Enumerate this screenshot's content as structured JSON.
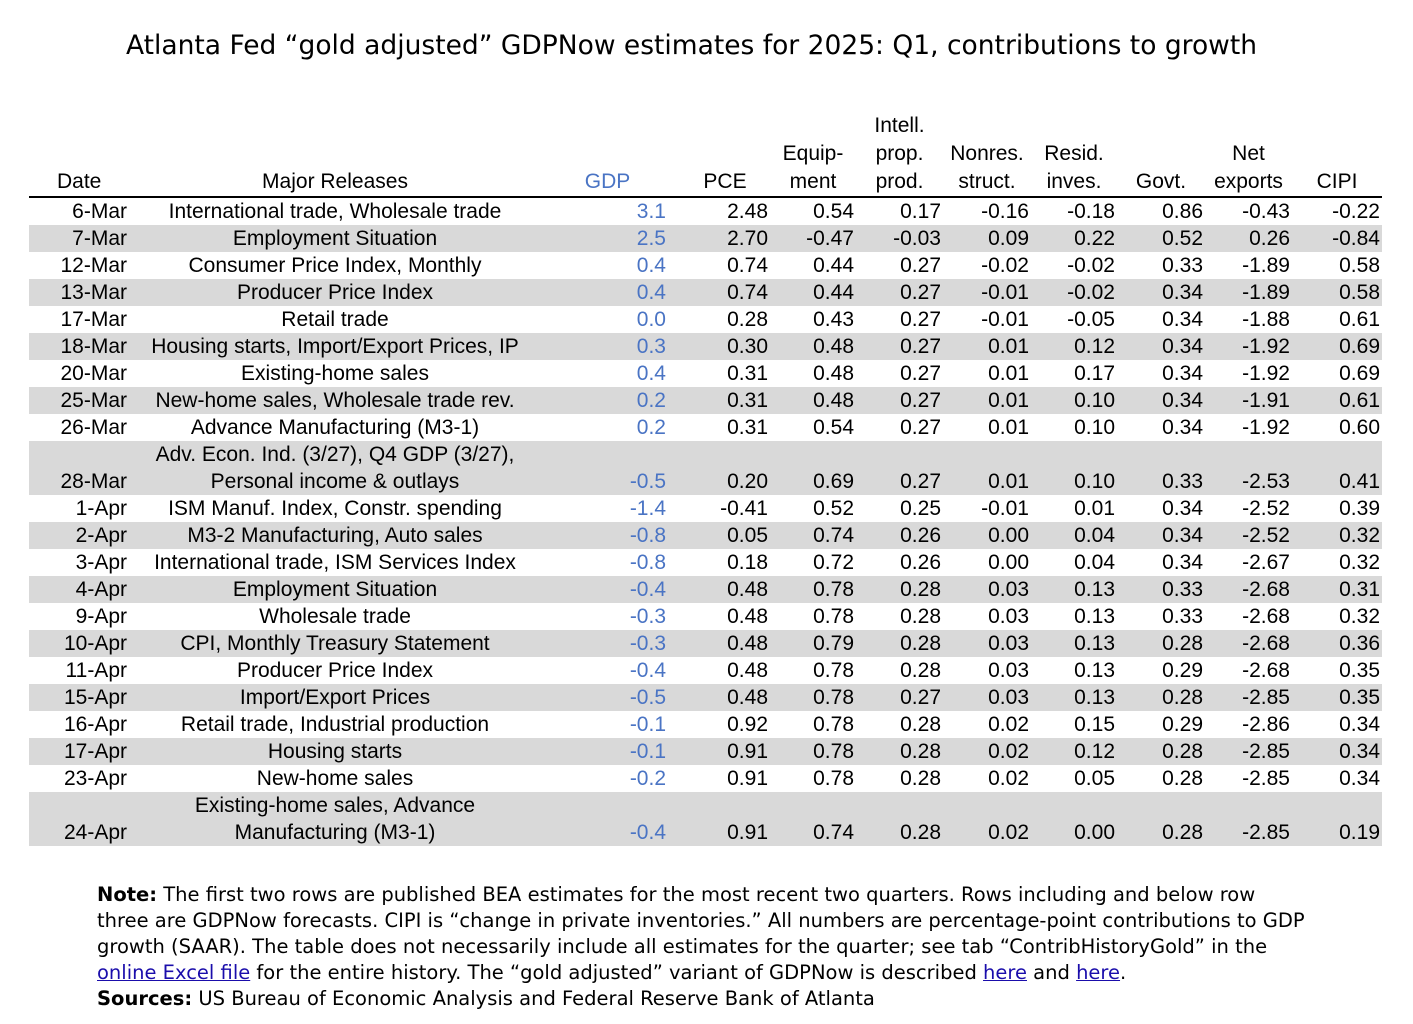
{
  "title": "Atlanta Fed “gold adjusted” GDPNow estimates for 2025: Q1, contributions to growth",
  "columns": {
    "date": "Date",
    "releases": "Major Releases",
    "gdp": "GDP",
    "pce": "PCE",
    "equip_1": "Equip-",
    "equip_2": "ment",
    "intell_1": "Intell.",
    "intell_2": "prop.",
    "intell_3": "prod.",
    "nonres_1": "Nonres.",
    "nonres_2": "struct.",
    "resid_1": "Resid.",
    "resid_2": "inves.",
    "govt": "Govt.",
    "net_1": "Net",
    "net_2": "exports",
    "cipi": "CIPI"
  },
  "rows": [
    {
      "date": "6-Mar",
      "release": "International trade, Wholesale trade",
      "gdp": "3.1",
      "pce": "2.48",
      "equip": "0.54",
      "ipp": "0.17",
      "nonres": "-0.16",
      "resid": "-0.18",
      "govt": "0.86",
      "netx": "-0.43",
      "cipi": "-0.22"
    },
    {
      "date": "7-Mar",
      "release": "Employment Situation",
      "gdp": "2.5",
      "pce": "2.70",
      "equip": "-0.47",
      "ipp": "-0.03",
      "nonres": "0.09",
      "resid": "0.22",
      "govt": "0.52",
      "netx": "0.26",
      "cipi": "-0.84"
    },
    {
      "date": "12-Mar",
      "release": "Consumer Price Index, Monthly",
      "gdp": "0.4",
      "pce": "0.74",
      "equip": "0.44",
      "ipp": "0.27",
      "nonres": "-0.02",
      "resid": "-0.02",
      "govt": "0.33",
      "netx": "-1.89",
      "cipi": "0.58"
    },
    {
      "date": "13-Mar",
      "release": "Producer Price Index",
      "gdp": "0.4",
      "pce": "0.74",
      "equip": "0.44",
      "ipp": "0.27",
      "nonres": "-0.01",
      "resid": "-0.02",
      "govt": "0.34",
      "netx": "-1.89",
      "cipi": "0.58"
    },
    {
      "date": "17-Mar",
      "release": "Retail trade",
      "gdp": "0.0",
      "pce": "0.28",
      "equip": "0.43",
      "ipp": "0.27",
      "nonres": "-0.01",
      "resid": "-0.05",
      "govt": "0.34",
      "netx": "-1.88",
      "cipi": "0.61"
    },
    {
      "date": "18-Mar",
      "release": "Housing starts, Import/Export Prices, IP",
      "gdp": "0.3",
      "pce": "0.30",
      "equip": "0.48",
      "ipp": "0.27",
      "nonres": "0.01",
      "resid": "0.12",
      "govt": "0.34",
      "netx": "-1.92",
      "cipi": "0.69"
    },
    {
      "date": "20-Mar",
      "release": "Existing-home sales",
      "gdp": "0.4",
      "pce": "0.31",
      "equip": "0.48",
      "ipp": "0.27",
      "nonres": "0.01",
      "resid": "0.17",
      "govt": "0.34",
      "netx": "-1.92",
      "cipi": "0.69"
    },
    {
      "date": "25-Mar",
      "release": "New-home sales, Wholesale trade rev.",
      "gdp": "0.2",
      "pce": "0.31",
      "equip": "0.48",
      "ipp": "0.27",
      "nonres": "0.01",
      "resid": "0.10",
      "govt": "0.34",
      "netx": "-1.91",
      "cipi": "0.61"
    },
    {
      "date": "26-Mar",
      "release": "Advance Manufacturing (M3-1)",
      "gdp": "0.2",
      "pce": "0.31",
      "equip": "0.54",
      "ipp": "0.27",
      "nonres": "0.01",
      "resid": "0.10",
      "govt": "0.34",
      "netx": "-1.92",
      "cipi": "0.60"
    },
    {
      "date": "28-Mar",
      "release": "Adv. Econ. Ind. (3/27), Q4 GDP (3/27),",
      "release2": "Personal income & outlays",
      "gdp": "-0.5",
      "pce": "0.20",
      "equip": "0.69",
      "ipp": "0.27",
      "nonres": "0.01",
      "resid": "0.10",
      "govt": "0.33",
      "netx": "-2.53",
      "cipi": "0.41"
    },
    {
      "date": "1-Apr",
      "release": "ISM Manuf. Index, Constr. spending",
      "gdp": "-1.4",
      "pce": "-0.41",
      "equip": "0.52",
      "ipp": "0.25",
      "nonres": "-0.01",
      "resid": "0.01",
      "govt": "0.34",
      "netx": "-2.52",
      "cipi": "0.39"
    },
    {
      "date": "2-Apr",
      "release": "M3-2 Manufacturing, Auto sales",
      "gdp": "-0.8",
      "pce": "0.05",
      "equip": "0.74",
      "ipp": "0.26",
      "nonres": "0.00",
      "resid": "0.04",
      "govt": "0.34",
      "netx": "-2.52",
      "cipi": "0.32"
    },
    {
      "date": "3-Apr",
      "release": "International trade, ISM Services Index",
      "gdp": "-0.8",
      "pce": "0.18",
      "equip": "0.72",
      "ipp": "0.26",
      "nonres": "0.00",
      "resid": "0.04",
      "govt": "0.34",
      "netx": "-2.67",
      "cipi": "0.32"
    },
    {
      "date": "4-Apr",
      "release": "Employment Situation",
      "gdp": "-0.4",
      "pce": "0.48",
      "equip": "0.78",
      "ipp": "0.28",
      "nonres": "0.03",
      "resid": "0.13",
      "govt": "0.33",
      "netx": "-2.68",
      "cipi": "0.31"
    },
    {
      "date": "9-Apr",
      "release": "Wholesale trade",
      "gdp": "-0.3",
      "pce": "0.48",
      "equip": "0.78",
      "ipp": "0.28",
      "nonres": "0.03",
      "resid": "0.13",
      "govt": "0.33",
      "netx": "-2.68",
      "cipi": "0.32"
    },
    {
      "date": "10-Apr",
      "release": "CPI, Monthly Treasury Statement",
      "gdp": "-0.3",
      "pce": "0.48",
      "equip": "0.79",
      "ipp": "0.28",
      "nonres": "0.03",
      "resid": "0.13",
      "govt": "0.28",
      "netx": "-2.68",
      "cipi": "0.36"
    },
    {
      "date": "11-Apr",
      "release": "Producer Price Index",
      "gdp": "-0.4",
      "pce": "0.48",
      "equip": "0.78",
      "ipp": "0.28",
      "nonres": "0.03",
      "resid": "0.13",
      "govt": "0.29",
      "netx": "-2.68",
      "cipi": "0.35"
    },
    {
      "date": "15-Apr",
      "release": "Import/Export Prices",
      "gdp": "-0.5",
      "pce": "0.48",
      "equip": "0.78",
      "ipp": "0.27",
      "nonres": "0.03",
      "resid": "0.13",
      "govt": "0.28",
      "netx": "-2.85",
      "cipi": "0.35"
    },
    {
      "date": "16-Apr",
      "release": "Retail trade, Industrial production",
      "gdp": "-0.1",
      "pce": "0.92",
      "equip": "0.78",
      "ipp": "0.28",
      "nonres": "0.02",
      "resid": "0.15",
      "govt": "0.29",
      "netx": "-2.86",
      "cipi": "0.34"
    },
    {
      "date": "17-Apr",
      "release": "Housing starts",
      "gdp": "-0.1",
      "pce": "0.91",
      "equip": "0.78",
      "ipp": "0.28",
      "nonres": "0.02",
      "resid": "0.12",
      "govt": "0.28",
      "netx": "-2.85",
      "cipi": "0.34"
    },
    {
      "date": "23-Apr",
      "release": "New-home sales",
      "gdp": "-0.2",
      "pce": "0.91",
      "equip": "0.78",
      "ipp": "0.28",
      "nonres": "0.02",
      "resid": "0.05",
      "govt": "0.28",
      "netx": "-2.85",
      "cipi": "0.34"
    },
    {
      "date": "24-Apr",
      "release": "Existing-home sales, Advance",
      "release2": "Manufacturing (M3-1)",
      "gdp": "-0.4",
      "pce": "0.91",
      "equip": "0.74",
      "ipp": "0.28",
      "nonres": "0.02",
      "resid": "0.00",
      "govt": "0.28",
      "netx": "-2.85",
      "cipi": "0.19"
    }
  ],
  "note": {
    "label": "Note:",
    "text1": " The first two rows are published BEA estimates for the most recent two quarters. Rows including and below row three are GDPNow forecasts. CIPI is “change in private inventories.” All numbers are percentage-point contributions to GDP growth (SAAR). The table does not necessarily include all estimates for the quarter; see tab “ContribHistoryGold” in the ",
    "link1": "online Excel file",
    "text2": " for the entire history. The “gold adjusted” variant of GDPNow is described ",
    "link2": "here",
    "text3": " and ",
    "link3": "here",
    "text4": "."
  },
  "sources": {
    "label": "Sources:",
    "text": " US Bureau of Economic Analysis and Federal Reserve Bank of Atlanta"
  },
  "colors": {
    "gdp_text": "#4a74c4",
    "row_shade": "#d9d9d9",
    "link": "#1a0dab"
  }
}
